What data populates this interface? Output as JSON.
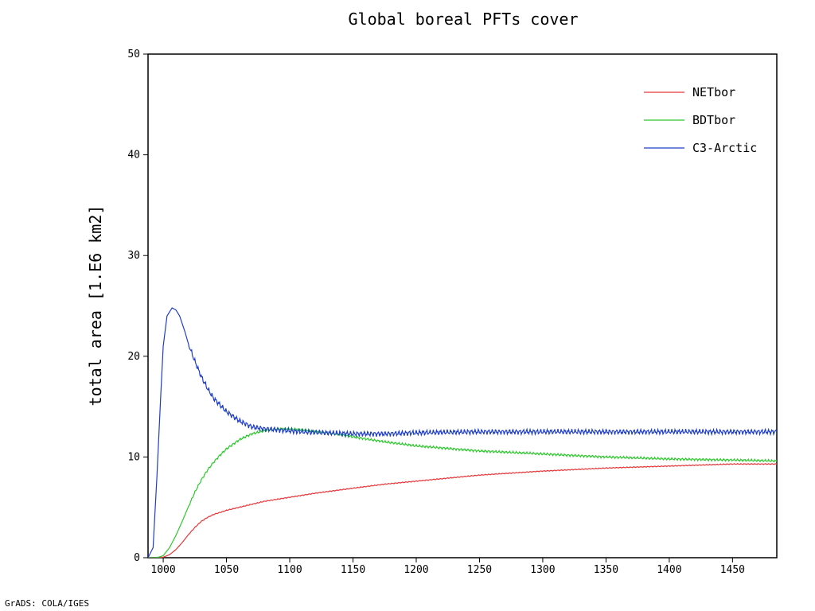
{
  "chart_data": {
    "type": "line",
    "title": "Global boreal PFTs cover",
    "ylabel": "total area [1.E6 km2]",
    "xlabel": "",
    "xlim": [
      988,
      1485
    ],
    "ylim": [
      0,
      50
    ],
    "x_ticks": [
      1000,
      1050,
      1100,
      1150,
      1200,
      1250,
      1300,
      1350,
      1400,
      1450
    ],
    "y_ticks": [
      0,
      10,
      20,
      30,
      40,
      50
    ],
    "grid": false,
    "legend_position": "top-right",
    "series": [
      {
        "name": "NETbor",
        "color": "#e8383c",
        "x": [
          988,
          995,
          1000,
          1005,
          1010,
          1015,
          1020,
          1025,
          1030,
          1035,
          1040,
          1050,
          1060,
          1070,
          1080,
          1090,
          1100,
          1120,
          1150,
          1175,
          1200,
          1250,
          1300,
          1350,
          1400,
          1450,
          1485
        ],
        "y": [
          0,
          0,
          0.05,
          0.3,
          0.8,
          1.5,
          2.3,
          3.0,
          3.6,
          4.0,
          4.3,
          4.7,
          5.0,
          5.3,
          5.6,
          5.8,
          6.0,
          6.4,
          6.9,
          7.3,
          7.6,
          8.2,
          8.6,
          8.9,
          9.1,
          9.3,
          9.3
        ]
      },
      {
        "name": "BDTbor",
        "color": "#2ec82e",
        "x": [
          988,
          995,
          1000,
          1005,
          1010,
          1015,
          1020,
          1025,
          1030,
          1035,
          1040,
          1045,
          1050,
          1060,
          1070,
          1080,
          1090,
          1100,
          1110,
          1125,
          1150,
          1175,
          1200,
          1250,
          1300,
          1350,
          1400,
          1450,
          1485
        ],
        "y": [
          0,
          0,
          0.2,
          1.0,
          2.2,
          3.6,
          5.1,
          6.5,
          7.7,
          8.7,
          9.5,
          10.2,
          10.8,
          11.7,
          12.3,
          12.6,
          12.8,
          12.8,
          12.7,
          12.5,
          12.0,
          11.5,
          11.1,
          10.6,
          10.3,
          10.0,
          9.8,
          9.7,
          9.6
        ]
      },
      {
        "name": "C3-Arctic",
        "color": "#1f3ec8",
        "x": [
          988,
          992,
          995,
          998,
          1000,
          1003,
          1007,
          1010,
          1013,
          1017,
          1020,
          1025,
          1030,
          1035,
          1040,
          1050,
          1060,
          1070,
          1080,
          1090,
          1100,
          1110,
          1125,
          1150,
          1175,
          1200,
          1250,
          1300,
          1350,
          1400,
          1450,
          1485
        ],
        "y": [
          0,
          1,
          8,
          16,
          21,
          24,
          24.8,
          24.6,
          24,
          22.5,
          21.2,
          19.5,
          18.0,
          16.8,
          15.8,
          14.5,
          13.6,
          13.0,
          12.8,
          12.7,
          12.6,
          12.5,
          12.4,
          12.3,
          12.3,
          12.4,
          12.5,
          12.5,
          12.5,
          12.5,
          12.5,
          12.5
        ]
      }
    ]
  },
  "footer": {
    "text": "GrADS: COLA/IGES"
  }
}
